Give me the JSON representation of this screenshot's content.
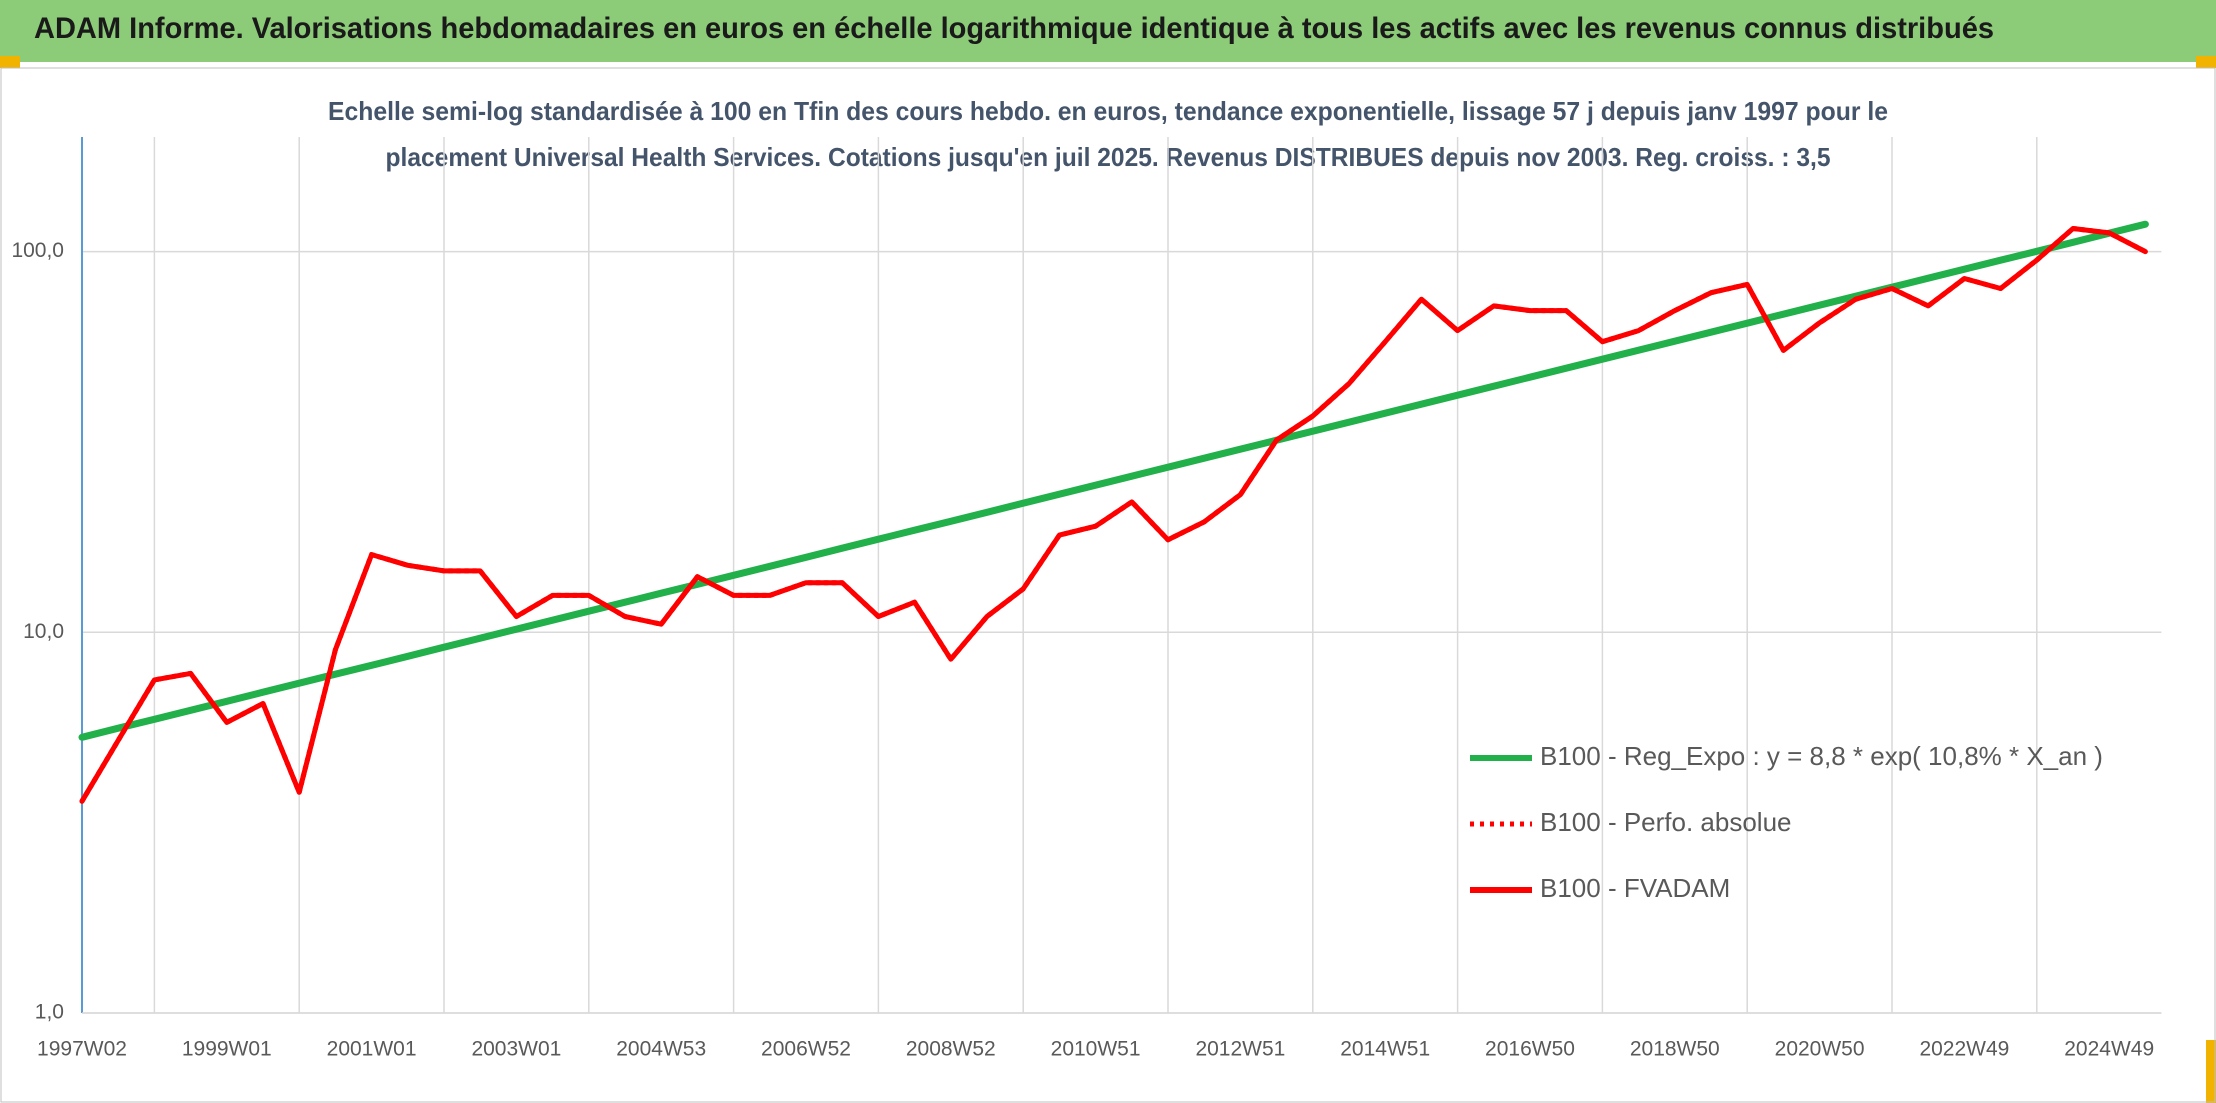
{
  "chart_data": {
    "type": "line",
    "title": "ADAM Informe. Valorisations hebdomadaires en euros en échelle logarithmique identique à tous les actifs avec les revenus connus distribués",
    "subtitle": [
      "Echelle semi-log standardisée à 100 en Tfin des cours hebdo. en euros, tendance exponentielle, lissage 57 j depuis janv 1997 pour le",
      "placement Universal Health Services. Cotations jusqu'en juil 2025. Revenus DISTRIBUES depuis nov 2003. Reg. croiss. : 3,5"
    ],
    "x": [
      "1997W02",
      null,
      null,
      null,
      "1999W01",
      null,
      null,
      null,
      "2001W01",
      null,
      null,
      null,
      "2003W01",
      null,
      null,
      null,
      "2004W53",
      null,
      null,
      null,
      "2006W52",
      null,
      null,
      null,
      "2008W52",
      null,
      null,
      null,
      "2010W51",
      null,
      null,
      null,
      "2012W51",
      null,
      null,
      null,
      "2014W51",
      null,
      null,
      null,
      "2016W50",
      null,
      null,
      null,
      "2018W50",
      null,
      null,
      null,
      "2020W50",
      null,
      null,
      null,
      "2022W49",
      null,
      null,
      null,
      "2024W49",
      null
    ],
    "series": [
      {
        "name": "B100 - Reg_Expo : y = 8,8 * exp( 10,8% *  X_an )",
        "color": "#22b04b",
        "dash": "solid",
        "values": [
          5.3,
          5.6,
          5.91,
          6.24,
          6.59,
          6.96,
          7.35,
          7.76,
          8.19,
          8.65,
          9.14,
          9.65,
          10.19,
          10.76,
          11.36,
          12.0,
          12.67,
          13.37,
          14.12,
          14.91,
          15.74,
          16.63,
          17.56,
          18.54,
          19.57,
          20.67,
          21.83,
          23.05,
          24.34,
          25.7,
          27.14,
          28.66,
          30.26,
          31.96,
          33.74,
          35.63,
          37.63,
          39.73,
          41.95,
          44.3,
          46.78,
          49.4,
          52.16,
          55.08,
          58.17,
          61.42,
          64.85,
          68.48,
          72.31,
          76.36,
          80.63,
          85.15,
          89.9,
          94.92,
          100.2,
          105.8,
          111.8,
          118.0
        ]
      },
      {
        "name": "B100 - Perfo. absolue",
        "color": "#ff0000",
        "dash": "dotted",
        "values": [
          3.6,
          5.2,
          7.5,
          7.8,
          5.8,
          6.5,
          3.8,
          9.0,
          16,
          15,
          14.5,
          14.5,
          11,
          12.5,
          12.5,
          11,
          10.5,
          14,
          12.5,
          12.5,
          13.5,
          13.5,
          11,
          12,
          8.5,
          11,
          13,
          18,
          19,
          22,
          17.5,
          19.5,
          23,
          32,
          37,
          45,
          58,
          75,
          62,
          72,
          70,
          70,
          58,
          62,
          70,
          78,
          82,
          55,
          65,
          75,
          80,
          72,
          85,
          80,
          95,
          115,
          112,
          100
        ]
      },
      {
        "name": "B100 - FVADAM",
        "color": "#ff0000",
        "dash": "solid",
        "values": [
          3.6,
          5.2,
          7.5,
          7.8,
          5.8,
          6.5,
          3.8,
          9.0,
          16,
          15,
          14.5,
          14.5,
          11,
          12.5,
          12.5,
          11,
          10.5,
          14,
          12.5,
          12.5,
          13.5,
          13.5,
          11,
          12,
          8.5,
          11,
          13,
          18,
          19,
          22,
          17.5,
          19.5,
          23,
          32,
          37,
          45,
          58,
          75,
          62,
          72,
          70,
          70,
          58,
          62,
          70,
          78,
          82,
          55,
          65,
          75,
          80,
          72,
          85,
          80,
          95,
          115,
          112,
          100
        ]
      }
    ],
    "ylim": [
      1,
      200
    ],
    "log_y": true,
    "yticks": [
      {
        "value": 1,
        "label": "1,0"
      },
      {
        "value": 10,
        "label": "10,0"
      },
      {
        "value": 100,
        "label": "100,0"
      }
    ],
    "grid": true,
    "legend": "lower right"
  }
}
